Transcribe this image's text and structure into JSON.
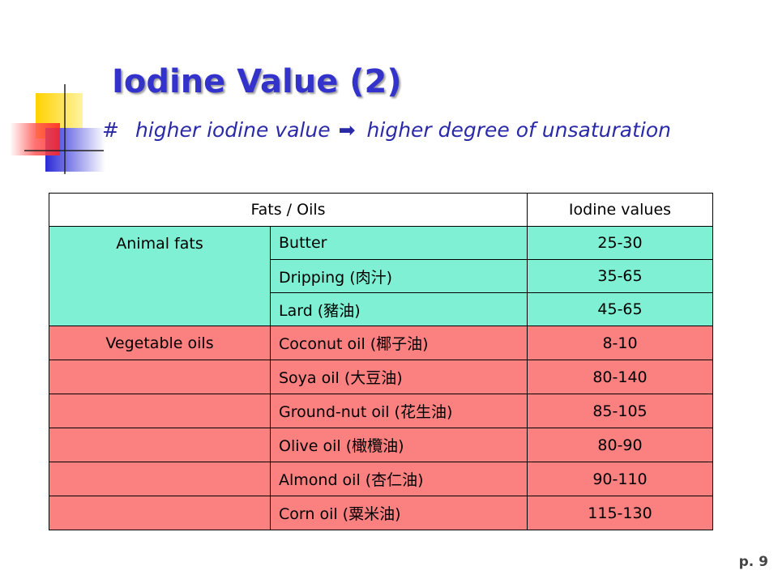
{
  "slide": {
    "title": "Iodine Value (2)",
    "subtitle": {
      "bullet": "#",
      "left_text": "higher iodine value",
      "arrow_icon": "right-arrow-icon",
      "right_text": "higher degree of unsaturation"
    },
    "page_number": "p. 9"
  },
  "table": {
    "headers": [
      "Fats / Oils",
      "Iodine values"
    ],
    "groups": [
      {
        "category": "Animal fats",
        "color": "#7ff0d4",
        "rows": [
          {
            "name": "Butter",
            "value": "25-30"
          },
          {
            "name": "Dripping (肉汁)",
            "value": "35-65"
          },
          {
            "name": "Lard (豬油)",
            "value": "45-65"
          }
        ]
      },
      {
        "category": "Vegetable oils",
        "color": "#fb8080",
        "rows": [
          {
            "name": "Coconut oil (椰子油)",
            "value": "8-10"
          },
          {
            "name": "Soya oil (大豆油)",
            "value": "80-140"
          },
          {
            "name": "Ground-nut oil (花生油)",
            "value": "85-105"
          },
          {
            "name": "Olive oil (橄欖油)",
            "value": "80-90"
          },
          {
            "name": "Almond oil (杏仁油)",
            "value": "90-110"
          },
          {
            "name": "Corn oil (粟米油)",
            "value": "115-130"
          }
        ]
      }
    ]
  }
}
